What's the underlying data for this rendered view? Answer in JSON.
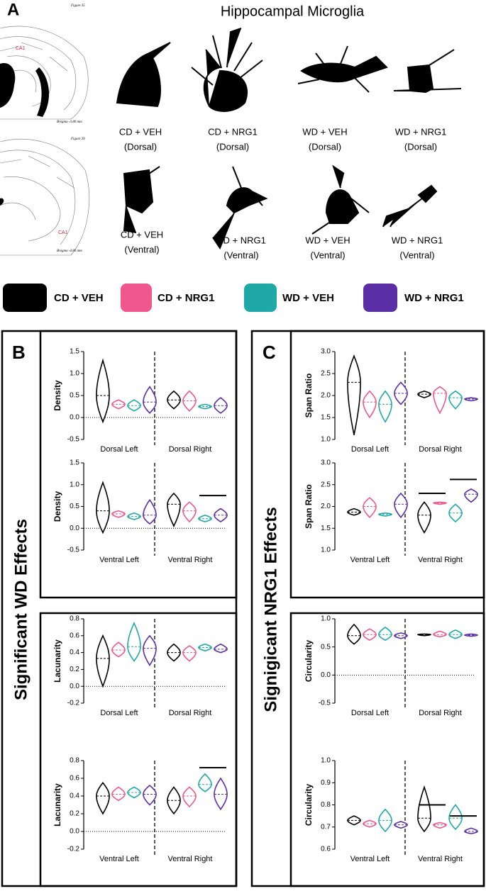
{
  "figure": {
    "panel_a": {
      "letter": "A",
      "title": "Hippocampal Microglia",
      "atlas": [
        {
          "figure": "Figure 35",
          "region": "CA1",
          "bregma": "Bregma -3.80 mm"
        },
        {
          "figure": "Figure 39",
          "region": "CA1",
          "bregma": "Bregma -4.80 mm"
        }
      ],
      "cells": [
        {
          "group": "CD + VEH",
          "region": "(Dorsal)"
        },
        {
          "group": "CD + NRG1",
          "region": "(Dorsal)"
        },
        {
          "group": "WD + VEH",
          "region": "(Dorsal)"
        },
        {
          "group": "WD + NRG1",
          "region": "(Dorsal)"
        },
        {
          "group": "CD + VEH",
          "region": "(Ventral)"
        },
        {
          "group": "CD + NRG1",
          "region": "(Ventral)"
        },
        {
          "group": "WD + VEH",
          "region": "(Ventral)"
        },
        {
          "group": "WD + NRG1",
          "region": "(Ventral)"
        }
      ]
    },
    "legend": [
      {
        "name": "CD + VEH",
        "color": "#000000"
      },
      {
        "name": "CD + NRG1",
        "color": "#f0578c"
      },
      {
        "name": "WD + VEH",
        "color": "#1fa9a6"
      },
      {
        "name": "WD + NRG1",
        "color": "#5b2ea6"
      }
    ],
    "panel_b": {
      "letter": "B",
      "title": "Significant WD Effects"
    },
    "panel_c": {
      "letter": "C",
      "title": "Signigicant NRG1 Effects"
    }
  },
  "chart_data": [
    {
      "type": "violin",
      "ylabel": "Density",
      "categories": [
        "Dorsal Left",
        "Dorsal Right"
      ],
      "ylim": [
        -0.5,
        1.5
      ],
      "yticks": [
        -0.5,
        {
          "value": 0,
          "label": "0.0"
        },
        0.5,
        {
          "value": 1,
          "label": "1.0"
        },
        1.5
      ],
      "series": [
        {
          "values": [
            {
              "min": -0.1,
              "median": 0.5,
              "max": 1.3
            },
            {
              "min": 0.2,
              "median": 0.4,
              "max": 0.6
            }
          ]
        },
        {
          "values": [
            {
              "min": 0.2,
              "median": 0.3,
              "max": 0.4
            },
            {
              "min": 0.15,
              "median": 0.38,
              "max": 0.6
            }
          ]
        },
        {
          "values": [
            {
              "min": 0.15,
              "median": 0.27,
              "max": 0.4
            },
            {
              "min": 0.2,
              "median": 0.25,
              "max": 0.3
            }
          ]
        },
        {
          "values": [
            {
              "min": 0.1,
              "median": 0.35,
              "max": 0.7
            },
            {
              "min": 0.1,
              "median": 0.27,
              "max": 0.45
            }
          ]
        }
      ],
      "significance": []
    },
    {
      "type": "violin",
      "ylabel": "Density",
      "categories": [
        "Ventral Left",
        "Ventral Right"
      ],
      "ylim": [
        -0.5,
        1.5
      ],
      "yticks": [
        -0.5,
        {
          "value": 0,
          "label": "0.0"
        },
        0.5,
        {
          "value": 1,
          "label": "1.0"
        },
        1.5
      ],
      "series": [
        {
          "values": [
            {
              "min": -0.1,
              "median": 0.4,
              "max": 1.05
            },
            {
              "min": 0.05,
              "median": 0.55,
              "max": 0.8
            }
          ]
        },
        {
          "values": [
            {
              "min": 0.25,
              "median": 0.33,
              "max": 0.4
            },
            {
              "min": 0.15,
              "median": 0.4,
              "max": 0.6
            }
          ]
        },
        {
          "values": [
            {
              "min": 0.2,
              "median": 0.27,
              "max": 0.35
            },
            {
              "min": 0.15,
              "median": 0.22,
              "max": 0.3
            }
          ]
        },
        {
          "values": [
            {
              "min": 0.1,
              "median": 0.3,
              "max": 0.65
            },
            {
              "min": 0.15,
              "median": 0.3,
              "max": 0.45
            }
          ]
        }
      ],
      "significance": [
        {
          "category": "Ventral Right",
          "between": [
            "WD + VEH",
            "WD + NRG1"
          ],
          "y": 0.75
        }
      ]
    },
    {
      "type": "violin",
      "ylabel": "Lacunarity",
      "categories": [
        "Dorsal Left",
        "Dorsal Right"
      ],
      "ylim": [
        -0.2,
        0.8
      ],
      "yticks": [
        -0.2,
        {
          "value": 0,
          "label": "0.0"
        },
        0.2,
        0.4,
        0.6,
        0.8
      ],
      "series": [
        {
          "values": [
            {
              "min": 0.0,
              "median": 0.33,
              "max": 0.6
            },
            {
              "min": 0.3,
              "median": 0.4,
              "max": 0.5
            }
          ]
        },
        {
          "values": [
            {
              "min": 0.35,
              "median": 0.43,
              "max": 0.52
            },
            {
              "min": 0.3,
              "median": 0.4,
              "max": 0.48
            }
          ]
        },
        {
          "values": [
            {
              "min": 0.3,
              "median": 0.47,
              "max": 0.75
            },
            {
              "min": 0.42,
              "median": 0.46,
              "max": 0.5
            }
          ]
        },
        {
          "values": [
            {
              "min": 0.25,
              "median": 0.45,
              "max": 0.6
            },
            {
              "min": 0.4,
              "median": 0.44,
              "max": 0.5
            }
          ]
        }
      ],
      "significance": []
    },
    {
      "type": "violin",
      "ylabel": "Lacunarity",
      "categories": [
        "Ventral Left",
        "Ventral Right"
      ],
      "ylim": [
        -0.2,
        0.8
      ],
      "yticks": [
        -0.2,
        {
          "value": 0,
          "label": "0.0"
        },
        0.2,
        0.4,
        0.6,
        0.8
      ],
      "series": [
        {
          "values": [
            {
              "min": 0.2,
              "median": 0.4,
              "max": 0.55
            },
            {
              "min": 0.2,
              "median": 0.35,
              "max": 0.5
            }
          ]
        },
        {
          "values": [
            {
              "min": 0.35,
              "median": 0.42,
              "max": 0.5
            },
            {
              "min": 0.28,
              "median": 0.4,
              "max": 0.5
            }
          ]
        },
        {
          "values": [
            {
              "min": 0.38,
              "median": 0.44,
              "max": 0.5
            },
            {
              "min": 0.45,
              "median": 0.53,
              "max": 0.65
            }
          ]
        },
        {
          "values": [
            {
              "min": 0.3,
              "median": 0.42,
              "max": 0.52
            },
            {
              "min": 0.25,
              "median": 0.42,
              "max": 0.6
            }
          ]
        }
      ],
      "significance": [
        {
          "category": "Ventral Right",
          "between": [
            "WD + VEH",
            "WD + NRG1"
          ],
          "y": 0.72
        }
      ]
    },
    {
      "type": "violin",
      "ylabel": "Span Ratio",
      "categories": [
        "Dorsal Left",
        "Dorsal Right"
      ],
      "ylim": [
        1.0,
        3.0
      ],
      "yticks": [
        {
          "value": 1,
          "label": "1.0"
        },
        1.5,
        {
          "value": 2,
          "label": "2.0"
        },
        2.5,
        {
          "value": 3,
          "label": "3.0"
        }
      ],
      "series": [
        {
          "values": [
            {
              "min": 1.1,
              "median": 2.3,
              "max": 2.9
            },
            {
              "min": 1.95,
              "median": 2.03,
              "max": 2.1
            }
          ]
        },
        {
          "values": [
            {
              "min": 1.5,
              "median": 1.85,
              "max": 2.1
            },
            {
              "min": 1.6,
              "median": 2.05,
              "max": 2.2
            }
          ]
        },
        {
          "values": [
            {
              "min": 1.4,
              "median": 1.8,
              "max": 2.1
            },
            {
              "min": 1.7,
              "median": 1.95,
              "max": 2.1
            }
          ]
        },
        {
          "values": [
            {
              "min": 1.8,
              "median": 2.05,
              "max": 2.3
            },
            {
              "min": 1.88,
              "median": 1.92,
              "max": 1.95
            }
          ]
        }
      ],
      "significance": []
    },
    {
      "type": "violin",
      "ylabel": "Span Ratio",
      "categories": [
        "Ventral Left",
        "Ventral Right"
      ],
      "ylim": [
        1.0,
        3.0
      ],
      "yticks": [
        {
          "value": 1,
          "label": "1.0"
        },
        1.5,
        {
          "value": 2,
          "label": "2.0"
        },
        2.5,
        {
          "value": 3,
          "label": "3.0"
        }
      ],
      "series": [
        {
          "values": [
            {
              "min": 1.8,
              "median": 1.87,
              "max": 1.95
            },
            {
              "min": 1.4,
              "median": 1.8,
              "max": 2.1
            }
          ]
        },
        {
          "values": [
            {
              "min": 1.75,
              "median": 2.0,
              "max": 2.2
            },
            {
              "min": 2.05,
              "median": 2.08,
              "max": 2.1
            }
          ]
        },
        {
          "values": [
            {
              "min": 1.78,
              "median": 1.82,
              "max": 1.85
            },
            {
              "min": 1.65,
              "median": 1.85,
              "max": 2.05
            }
          ]
        },
        {
          "values": [
            {
              "min": 1.75,
              "median": 2.05,
              "max": 2.3
            },
            {
              "min": 2.1,
              "median": 2.28,
              "max": 2.4
            }
          ]
        }
      ],
      "significance": [
        {
          "category": "Ventral Right",
          "between": [
            "CD + VEH",
            "CD + NRG1"
          ],
          "y": 2.3
        },
        {
          "category": "Ventral Right",
          "between": [
            "WD + VEH",
            "WD + NRG1"
          ],
          "y": 2.62
        }
      ]
    },
    {
      "type": "violin",
      "ylabel": "Circularity",
      "categories": [
        "Dorsal Left",
        "Dorsal Right"
      ],
      "ylim": [
        -0.5,
        1.0
      ],
      "yticks": [
        -0.5,
        {
          "value": 0,
          "label": "0.0"
        },
        0.5,
        {
          "value": 1,
          "label": "1.0"
        }
      ],
      "series": [
        {
          "values": [
            {
              "min": 0.55,
              "median": 0.7,
              "max": 0.9
            },
            {
              "min": 0.7,
              "median": 0.72,
              "max": 0.73
            }
          ]
        },
        {
          "values": [
            {
              "min": 0.62,
              "median": 0.72,
              "max": 0.82
            },
            {
              "min": 0.68,
              "median": 0.72,
              "max": 0.78
            }
          ]
        },
        {
          "values": [
            {
              "min": 0.62,
              "median": 0.72,
              "max": 0.85
            },
            {
              "min": 0.65,
              "median": 0.72,
              "max": 0.8
            }
          ]
        },
        {
          "values": [
            {
              "min": 0.65,
              "median": 0.7,
              "max": 0.75
            },
            {
              "min": 0.69,
              "median": 0.71,
              "max": 0.73
            }
          ]
        }
      ],
      "significance": []
    },
    {
      "type": "violin",
      "ylabel": "Circularity",
      "categories": [
        "Ventral Left",
        "Ventral Right"
      ],
      "ylim": [
        0.6,
        1.0
      ],
      "yticks": [
        0.6,
        0.7,
        0.8,
        0.9,
        {
          "value": 1,
          "label": "1.0"
        }
      ],
      "series": [
        {
          "values": [
            {
              "min": 0.71,
              "median": 0.73,
              "max": 0.75
            },
            {
              "min": 0.68,
              "median": 0.74,
              "max": 0.88
            }
          ]
        },
        {
          "values": [
            {
              "min": 0.7,
              "median": 0.715,
              "max": 0.73
            },
            {
              "min": 0.695,
              "median": 0.71,
              "max": 0.72
            }
          ]
        },
        {
          "values": [
            {
              "min": 0.68,
              "median": 0.73,
              "max": 0.78
            },
            {
              "min": 0.69,
              "median": 0.74,
              "max": 0.8
            }
          ]
        },
        {
          "values": [
            {
              "min": 0.695,
              "median": 0.71,
              "max": 0.725
            },
            {
              "min": 0.67,
              "median": 0.68,
              "max": 0.695
            }
          ]
        }
      ],
      "significance": [
        {
          "category": "Ventral Right",
          "between": [
            "CD + VEH",
            "CD + NRG1"
          ],
          "y": 0.8
        },
        {
          "category": "Ventral Right",
          "between": [
            "WD + VEH",
            "WD + NRG1"
          ],
          "y": 0.75
        }
      ]
    }
  ]
}
